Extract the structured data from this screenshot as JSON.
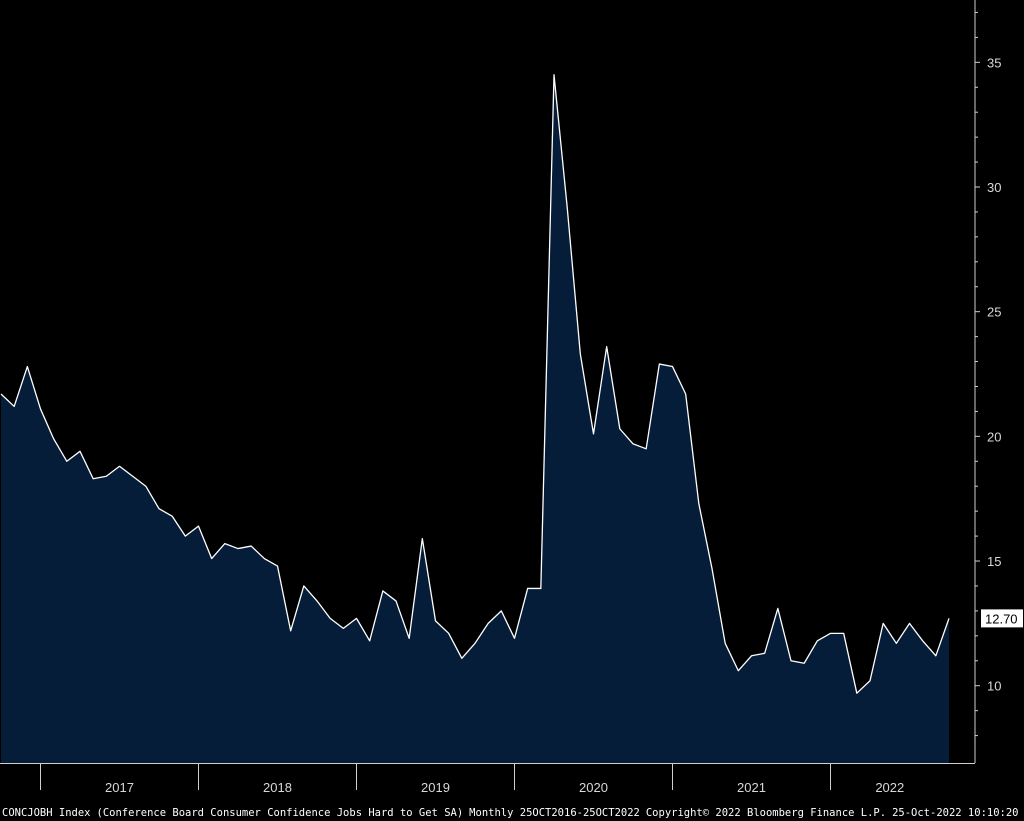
{
  "footer": {
    "ticker": "CONCJOBH Index",
    "description": "(Conference Board Consumer Confidence Jobs Hard to Get SA)",
    "frequency_range": "Monthly 25OCT2016-25OCT2022",
    "copyright": "Copyright© 2022 Bloomberg Finance L.P.",
    "timestamp": "25-Oct-2022 10:10:20"
  },
  "last_value_label": "12.70",
  "colors": {
    "background": "#000000",
    "area_fill": "#061d3a",
    "line": "#ffffff",
    "axis": "#cfcfcf",
    "text": "#d8d8d8",
    "last_value_bg": "#ffffff"
  },
  "chart_data": {
    "type": "area",
    "title": "",
    "xlabel": "",
    "ylabel": "",
    "ylim": [
      6.9,
      37.5
    ],
    "x_start": "2016-10",
    "x_end": "2022-10",
    "y_ticks": [
      "10",
      "15",
      "20",
      "25",
      "30",
      "35"
    ],
    "x_ticks": [
      "2017",
      "2018",
      "2019",
      "2020",
      "2021",
      "2022"
    ],
    "axis_side": "right",
    "grid": false,
    "series": [
      {
        "x": [
          "2016-10",
          "2016-11",
          "2016-12",
          "2017-01",
          "2017-02",
          "2017-03",
          "2017-04",
          "2017-05",
          "2017-06",
          "2017-07",
          "2017-08",
          "2017-09",
          "2017-10",
          "2017-11",
          "2017-12",
          "2018-01",
          "2018-02",
          "2018-03",
          "2018-04",
          "2018-05",
          "2018-06",
          "2018-07",
          "2018-08",
          "2018-09",
          "2018-10",
          "2018-11",
          "2018-12",
          "2019-01",
          "2019-02",
          "2019-03",
          "2019-04",
          "2019-05",
          "2019-06",
          "2019-07",
          "2019-08",
          "2019-09",
          "2019-10",
          "2019-11",
          "2019-12",
          "2020-01",
          "2020-02",
          "2020-03",
          "2020-04",
          "2020-05",
          "2020-06",
          "2020-07",
          "2020-08",
          "2020-09",
          "2020-10",
          "2020-11",
          "2020-12",
          "2021-01",
          "2021-02",
          "2021-03",
          "2021-04",
          "2021-05",
          "2021-06",
          "2021-07",
          "2021-08",
          "2021-09",
          "2021-10",
          "2021-11",
          "2021-12",
          "2022-01",
          "2022-02",
          "2022-03",
          "2022-04",
          "2022-05",
          "2022-06",
          "2022-07",
          "2022-08",
          "2022-09",
          "2022-10"
        ],
        "values": [
          21.7,
          21.2,
          22.8,
          21.1,
          19.9,
          19.0,
          19.4,
          18.3,
          18.4,
          18.8,
          18.4,
          18.0,
          17.1,
          16.8,
          16.0,
          16.4,
          15.1,
          15.7,
          15.5,
          15.6,
          15.1,
          14.8,
          12.2,
          14.0,
          13.4,
          12.7,
          12.3,
          12.7,
          11.8,
          13.8,
          13.4,
          11.9,
          15.9,
          12.6,
          12.1,
          11.1,
          11.7,
          12.5,
          13.0,
          11.9,
          13.9,
          13.9,
          34.5,
          29.2,
          23.3,
          20.1,
          23.6,
          20.3,
          19.7,
          19.5,
          22.9,
          22.8,
          21.7,
          17.3,
          14.7,
          11.7,
          10.6,
          11.2,
          11.3,
          13.1,
          11.0,
          10.9,
          11.8,
          12.1,
          12.1,
          9.7,
          10.2,
          12.5,
          11.7,
          12.5,
          11.8,
          11.2,
          12.7
        ]
      }
    ]
  }
}
